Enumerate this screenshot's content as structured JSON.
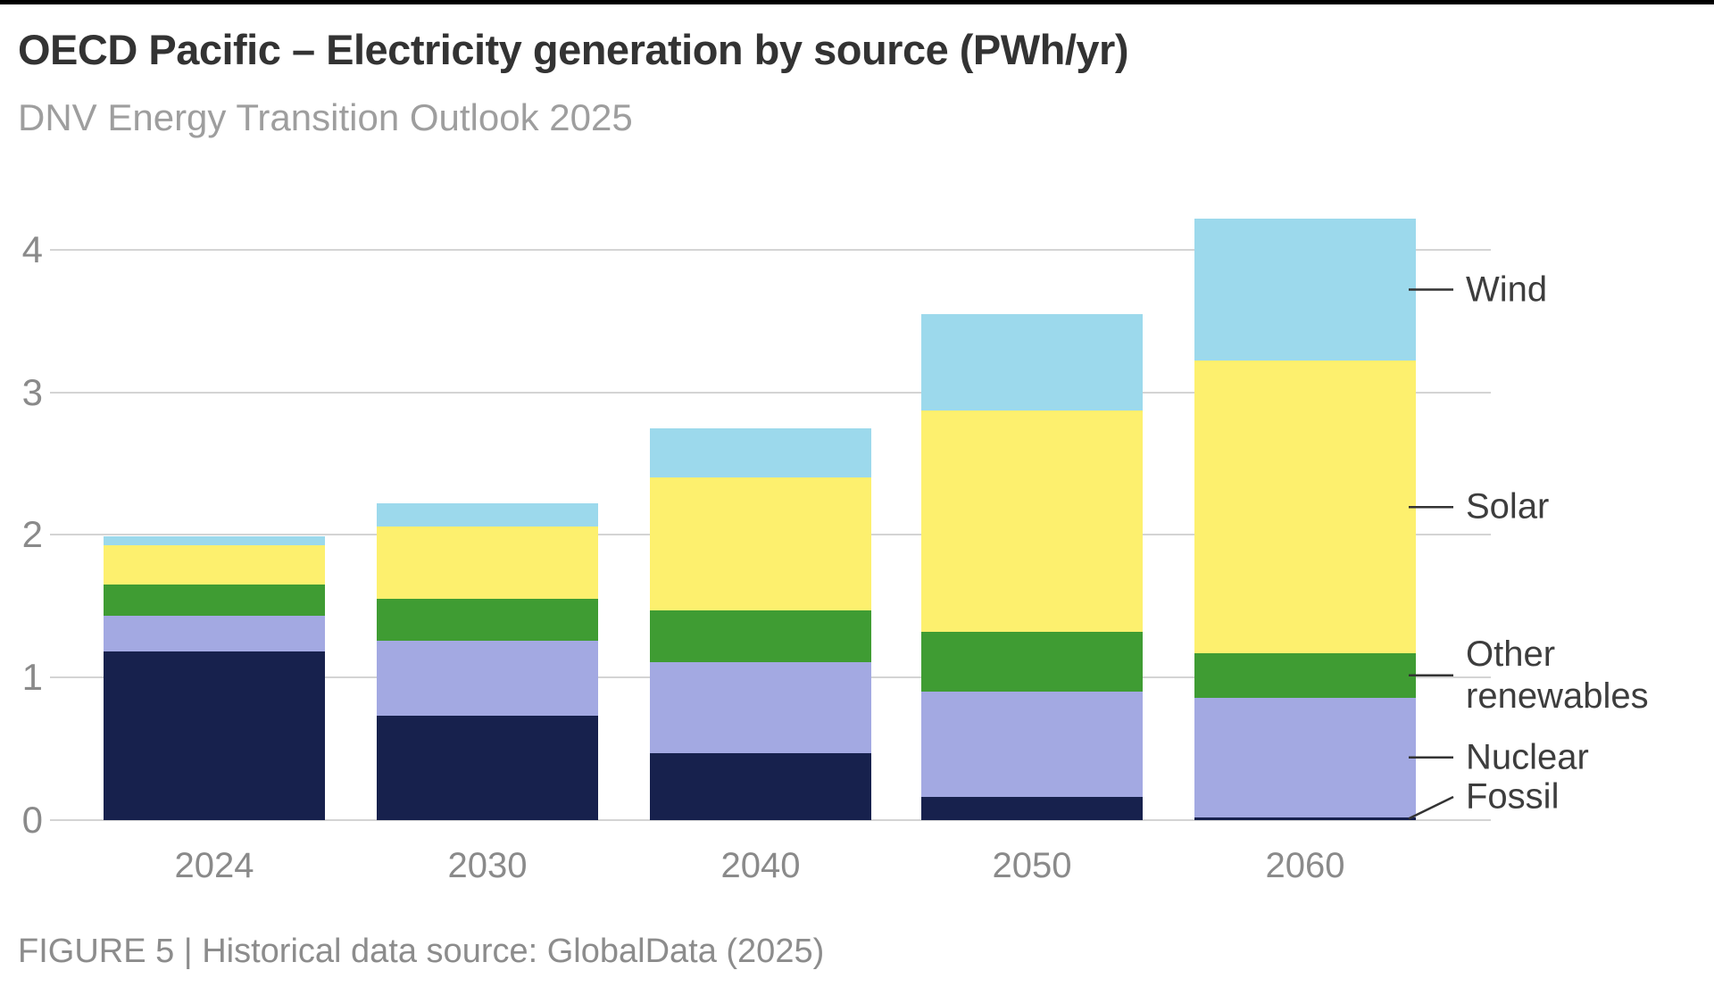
{
  "page": {
    "title": "OECD Pacific – Electricity generation by source (PWh/yr)",
    "subtitle": "DNV Energy Transition Outlook 2025",
    "caption": "FIGURE 5 | Historical data source: GlobalData (2025)"
  },
  "chart_data": {
    "type": "bar",
    "stacked": true,
    "title": "OECD Pacific – Electricity generation by source (PWh/yr)",
    "subtitle": "DNV Energy Transition Outlook 2025",
    "caption": "FIGURE 5 | Historical data source: GlobalData (2025)",
    "xlabel": "",
    "ylabel": "PWh/yr",
    "categories": [
      "2024",
      "2030",
      "2040",
      "2050",
      "2060"
    ],
    "series": [
      {
        "name": "Fossil",
        "color": "#17214d",
        "values": [
          1.18,
          0.73,
          0.47,
          0.16,
          0.02
        ]
      },
      {
        "name": "Nuclear",
        "color": "#a3a9e2",
        "values": [
          0.25,
          0.53,
          0.64,
          0.74,
          0.84
        ]
      },
      {
        "name": "Other renewables",
        "color": "#3f9c33",
        "values": [
          0.22,
          0.29,
          0.36,
          0.42,
          0.31
        ]
      },
      {
        "name": "Solar",
        "color": "#fdf06e",
        "values": [
          0.28,
          0.51,
          0.93,
          1.55,
          2.05
        ]
      },
      {
        "name": "Wind",
        "color": "#9cd9ec",
        "values": [
          0.06,
          0.16,
          0.35,
          0.68,
          1.0
        ]
      }
    ],
    "totals": [
      1.99,
      2.22,
      2.75,
      3.55,
      4.22
    ],
    "yticks": [
      0,
      1,
      2,
      3,
      4
    ],
    "ylim": [
      0,
      4.4
    ],
    "grid": true,
    "legend_position": "right-annotations",
    "right_labels": [
      "Wind",
      "Solar",
      "Other renewables",
      "Nuclear",
      "Fossil"
    ]
  },
  "colors": {
    "background": "#ffffff",
    "top_strip": "#000000",
    "title_text": "#333333",
    "subtitle_text": "#9e9e9e",
    "caption_text": "#8c8c8c",
    "axis_text": "#8a8a8a",
    "gridline": "#d4d4d4",
    "annotation_text": "#3d3d3d",
    "leader_line": "#333333"
  }
}
